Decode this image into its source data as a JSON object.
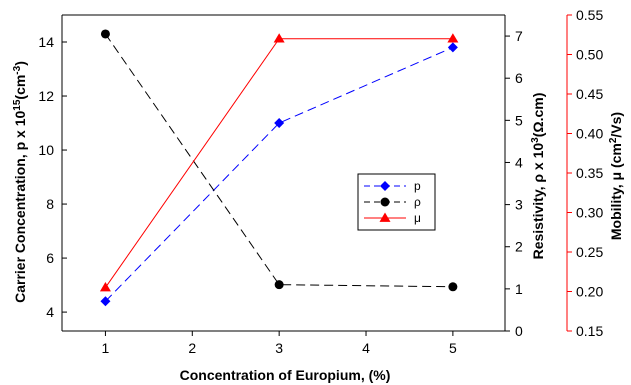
{
  "chart_data": {
    "type": "line",
    "title": "",
    "x": [
      1,
      3,
      5
    ],
    "xlabel": "Concentration of Europium, (%)",
    "xlim": [
      0.5,
      5.6
    ],
    "xticks": [
      "1",
      "2",
      "3",
      "4",
      "5"
    ],
    "axes": {
      "left": {
        "label_main": "Carrier Concentration, p x 10",
        "label_exp": "15",
        "label_unit_open": "(cm",
        "label_unit_exp": "-3",
        "label_unit_close": ")",
        "ylim": [
          3.3,
          15
        ],
        "ticks": [
          "4",
          "6",
          "8",
          "10",
          "12",
          "14"
        ],
        "color": "#000000"
      },
      "middle": {
        "label_main": "Resistivity, ρ x 10",
        "label_exp": "3",
        "label_unit": "(Ω.cm)",
        "ylim": [
          0,
          7.5
        ],
        "ticks": [
          "0",
          "1",
          "2",
          "3",
          "4",
          "5",
          "6",
          "7"
        ],
        "color": "#000000"
      },
      "right": {
        "label_main": "Mobility, μ (cm",
        "label_exp": "2",
        "label_unit": "/Vs)",
        "ylim": [
          0.15,
          0.55
        ],
        "ticks": [
          "0.15",
          "0.20",
          "0.25",
          "0.30",
          "0.35",
          "0.40",
          "0.45",
          "0.50",
          "0.55"
        ],
        "color": "#ff0000"
      }
    },
    "series": [
      {
        "name": "p",
        "axis": "left",
        "values": [
          4.4,
          11.0,
          13.8
        ],
        "color": "#0000ff",
        "marker": "diamond",
        "dash": "dashed"
      },
      {
        "name": "ρ",
        "axis": "middle",
        "values": [
          7.05,
          1.1,
          1.05
        ],
        "color": "#000000",
        "marker": "circle",
        "dash": "dashed"
      },
      {
        "name": "μ",
        "axis": "right",
        "values": [
          0.205,
          0.52,
          0.52
        ],
        "color": "#ff0000",
        "marker": "triangle",
        "dash": "solid"
      }
    ],
    "legend": {
      "position": "center-right"
    },
    "grid": false
  }
}
